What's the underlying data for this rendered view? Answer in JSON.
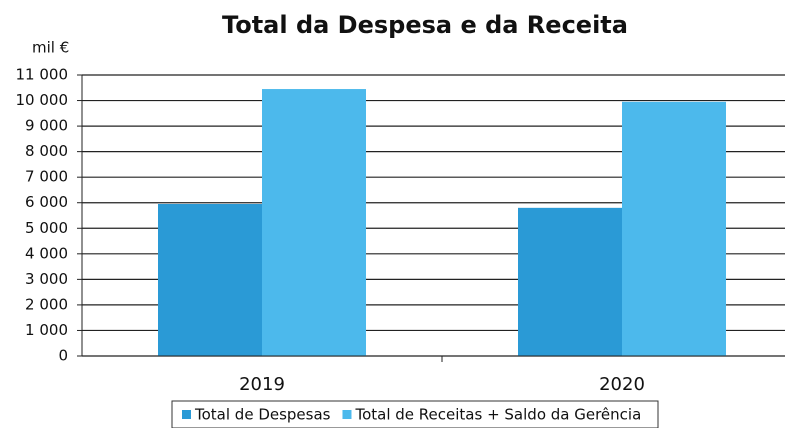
{
  "chart_data": {
    "type": "bar",
    "title": "Total da Despesa e da Receita",
    "y_label": "mil €",
    "categories": [
      "2019",
      "2020"
    ],
    "series": [
      {
        "name": "Total de Despesas",
        "color": "#2a9ad6",
        "values": [
          5950,
          5800
        ]
      },
      {
        "name": "Total de Receitas + Saldo da Gerência",
        "color": "#4cb9ec",
        "values": [
          10450,
          9950
        ]
      }
    ],
    "ylim": [
      0,
      11000
    ],
    "yticks": [
      0,
      {
        "value": 1000,
        "label": "1 000"
      },
      {
        "value": 2000,
        "label": "2 000"
      },
      {
        "value": 3000,
        "label": "3 000"
      },
      {
        "value": 4000,
        "label": "4 000"
      },
      {
        "value": 5000,
        "label": "5 000"
      },
      {
        "value": 6000,
        "label": "6 000"
      },
      {
        "value": 7000,
        "label": "7 000"
      },
      {
        "value": 8000,
        "label": "8 000"
      },
      {
        "value": 9000,
        "label": "9 000"
      },
      {
        "value": 10000,
        "label": "10 000"
      },
      {
        "value": 11000,
        "label": "11 000"
      }
    ],
    "grid": true,
    "legend": "bottom"
  }
}
